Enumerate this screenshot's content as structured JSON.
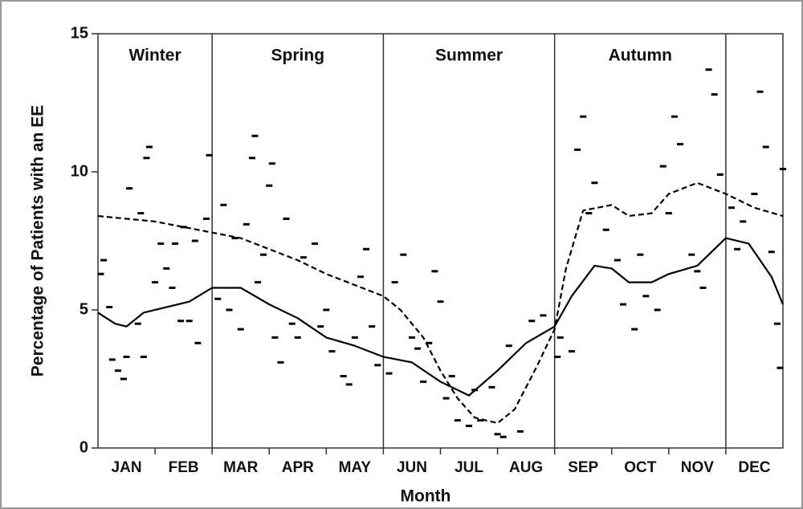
{
  "chart_data": {
    "type": "line",
    "y_label": "Percentage of Patients with an EE",
    "x_label": "Month",
    "categories": [
      "JAN",
      "FEB",
      "MAR",
      "APR",
      "MAY",
      "JUN",
      "JUL",
      "AUG",
      "SEP",
      "OCT",
      "NOV",
      "DEC"
    ],
    "xlim": [
      0,
      12
    ],
    "ylim": [
      0,
      15
    ],
    "yticks": [
      0,
      5,
      10,
      15
    ],
    "seasons": [
      "Winter",
      "Spring",
      "Summer",
      "Autumn"
    ],
    "season_bounds": [
      0,
      2,
      5,
      8,
      11
    ],
    "series": [
      {
        "color": "#000",
        "dash": false,
        "x": [
          0,
          0.3,
          0.5,
          0.8,
          1.2,
          1.6,
          2.0,
          2.5,
          3.0,
          3.5,
          4.0,
          4.5,
          5.0,
          5.5,
          6.0,
          6.5,
          7.0,
          7.5,
          8.0,
          8.3,
          8.7,
          9.0,
          9.3,
          9.7,
          10.0,
          10.5,
          11.0,
          11.4,
          11.8,
          12
        ],
        "values": [
          4.9,
          4.5,
          4.4,
          4.9,
          5.1,
          5.3,
          5.8,
          5.8,
          5.2,
          4.7,
          4.0,
          3.7,
          3.3,
          3.1,
          2.4,
          1.9,
          2.8,
          3.8,
          4.4,
          5.5,
          6.6,
          6.5,
          6.0,
          6.0,
          6.3,
          6.6,
          7.6,
          7.4,
          6.2,
          5.2
        ]
      },
      {
        "color": "#000",
        "dash": true,
        "x": [
          0,
          0.5,
          1.0,
          1.5,
          2.0,
          2.5,
          3.0,
          3.5,
          4.0,
          4.5,
          5.0,
          5.3,
          5.7,
          6.0,
          6.3,
          6.6,
          7.0,
          7.3,
          7.7,
          8.0,
          8.2,
          8.5,
          9.0,
          9.3,
          9.7,
          10.0,
          10.5,
          11.0,
          11.5,
          12
        ],
        "values": [
          8.4,
          8.3,
          8.2,
          8.0,
          7.8,
          7.6,
          7.2,
          6.8,
          6.3,
          5.9,
          5.5,
          5.0,
          4.0,
          2.8,
          1.8,
          1.1,
          0.9,
          1.4,
          3.0,
          4.3,
          6.5,
          8.6,
          8.8,
          8.4,
          8.5,
          9.2,
          9.6,
          9.2,
          8.7,
          8.4
        ]
      }
    ],
    "points": {
      "color": "#000",
      "x": [
        0.05,
        0.1,
        0.2,
        0.25,
        0.35,
        0.45,
        0.5,
        0.55,
        0.7,
        0.75,
        0.8,
        0.85,
        0.9,
        1.0,
        1.1,
        1.2,
        1.3,
        1.35,
        1.45,
        1.5,
        1.6,
        1.7,
        1.75,
        1.9,
        1.95,
        2.1,
        2.2,
        2.3,
        2.4,
        2.5,
        2.6,
        2.7,
        2.75,
        2.8,
        2.9,
        3.0,
        3.05,
        3.1,
        3.2,
        3.3,
        3.4,
        3.5,
        3.6,
        3.8,
        3.9,
        4.0,
        4.1,
        4.3,
        4.4,
        4.5,
        4.6,
        4.7,
        4.8,
        4.9,
        5.1,
        5.2,
        5.35,
        5.5,
        5.6,
        5.7,
        5.8,
        5.9,
        6.0,
        6.1,
        6.2,
        6.3,
        6.5,
        6.6,
        6.7,
        6.9,
        7.0,
        7.1,
        7.2,
        7.4,
        7.6,
        7.8,
        8.05,
        8.1,
        8.3,
        8.4,
        8.5,
        8.6,
        8.7,
        8.9,
        9.1,
        9.2,
        9.4,
        9.5,
        9.6,
        9.8,
        9.9,
        10.0,
        10.1,
        10.2,
        10.4,
        10.5,
        10.6,
        10.7,
        10.8,
        10.9,
        11.1,
        11.2,
        11.3,
        11.5,
        11.6,
        11.7,
        11.8,
        11.9,
        11.95,
        12.0
      ],
      "values": [
        6.3,
        6.8,
        5.1,
        3.2,
        2.8,
        2.5,
        3.3,
        9.4,
        4.5,
        8.5,
        3.3,
        10.5,
        10.9,
        6.0,
        7.4,
        6.5,
        5.8,
        7.4,
        4.6,
        8.0,
        4.6,
        7.5,
        3.8,
        8.3,
        10.6,
        5.4,
        8.8,
        5.0,
        7.6,
        4.3,
        8.1,
        10.5,
        11.3,
        6.0,
        7.0,
        9.5,
        10.3,
        4.0,
        3.1,
        8.3,
        4.5,
        4.0,
        6.9,
        7.4,
        4.4,
        5.0,
        3.5,
        2.6,
        2.3,
        4.0,
        6.2,
        7.2,
        4.4,
        3.0,
        2.7,
        6.0,
        7.0,
        4.0,
        3.6,
        2.4,
        3.8,
        6.4,
        5.3,
        1.8,
        2.6,
        1.0,
        0.8,
        2.1,
        1.0,
        2.2,
        0.5,
        0.4,
        3.7,
        0.6,
        4.6,
        4.8,
        3.3,
        4.0,
        3.5,
        10.8,
        12.0,
        8.5,
        9.6,
        7.9,
        6.8,
        5.2,
        4.3,
        7.0,
        5.5,
        5.0,
        10.2,
        8.5,
        12.0,
        11.0,
        7.0,
        6.4,
        5.8,
        13.7,
        12.8,
        9.9,
        8.7,
        7.2,
        8.2,
        9.2,
        12.9,
        10.9,
        7.1,
        4.5,
        2.9,
        10.1
      ]
    }
  }
}
